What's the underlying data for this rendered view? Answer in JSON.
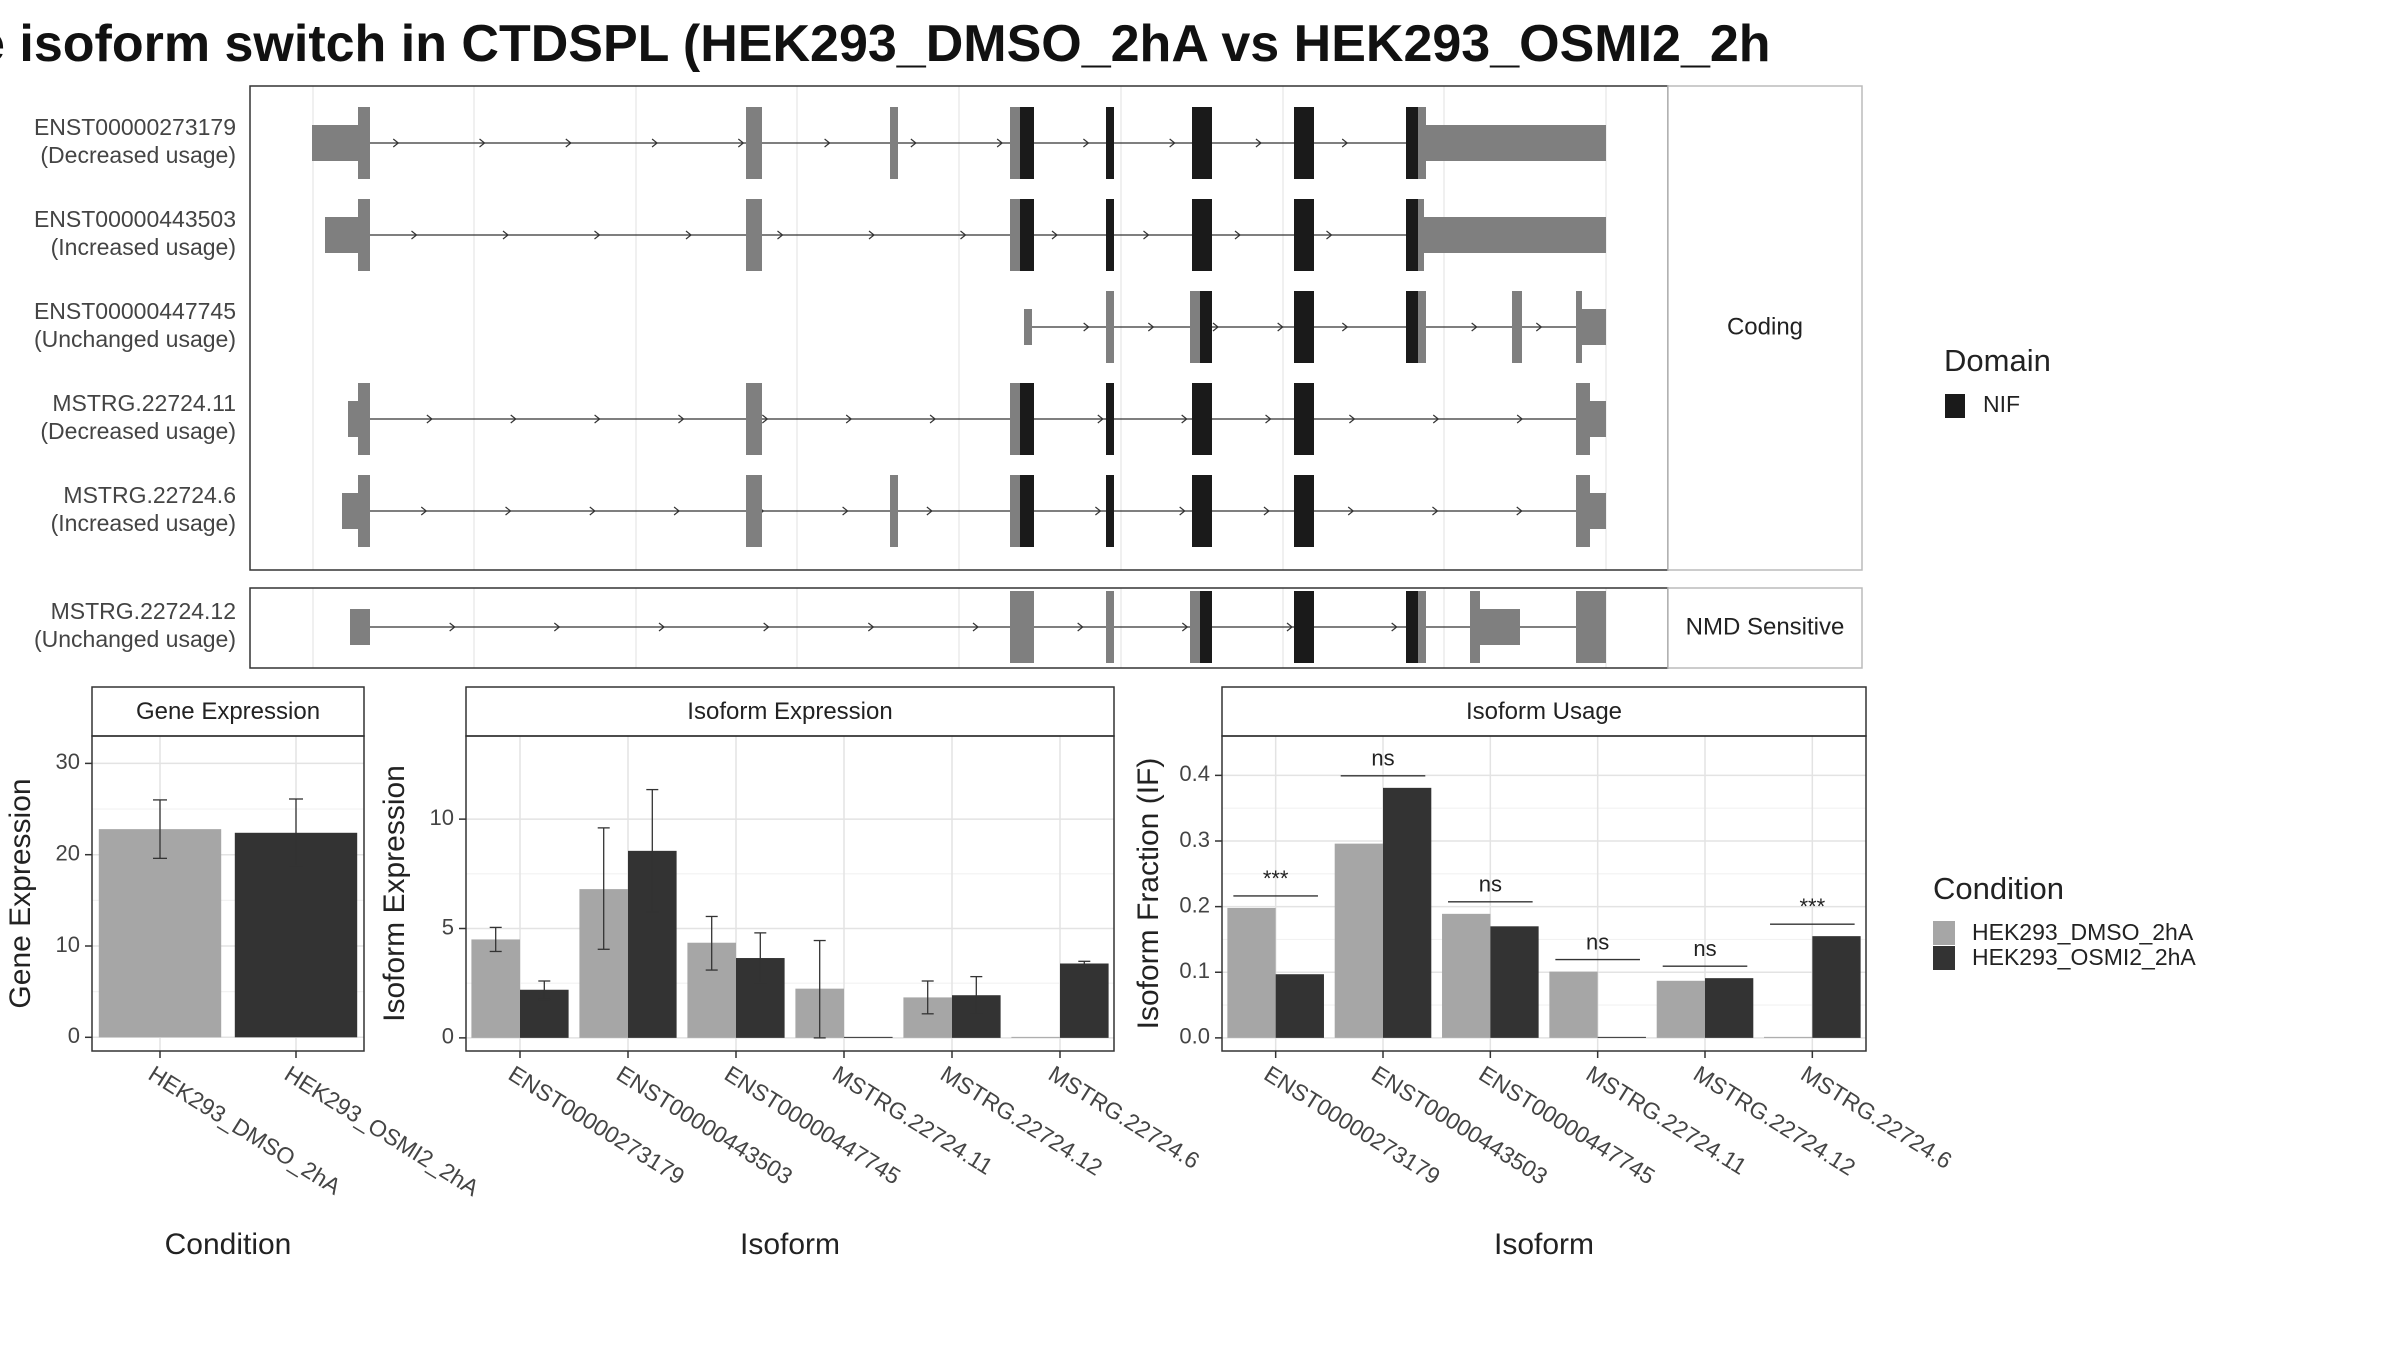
{
  "title": "e isoform switch in CTDSPL (HEK293_DMSO_2hA vs HEK293_OSMI2_2h",
  "colors": {
    "dmso": "#a6a6a6",
    "osmi2": "#333333",
    "exon": "#7f7f7f",
    "domain": "#1a1a1a",
    "strip": "#ffffff"
  },
  "transcripts": {
    "facets": [
      "Coding",
      "NMD Sensitive"
    ],
    "legend": {
      "title": "Domain",
      "items": [
        "NIF"
      ]
    },
    "rows": [
      {
        "facet": 0,
        "id": "ENST00000273179",
        "status": "(Decreased usage)"
      },
      {
        "facet": 0,
        "id": "ENST00000443503",
        "status": "(Increased usage)"
      },
      {
        "facet": 0,
        "id": "ENST00000447745",
        "status": "(Unchanged usage)"
      },
      {
        "facet": 0,
        "id": "MSTRG.22724.11",
        "status": "(Decreased usage)"
      },
      {
        "facet": 0,
        "id": "MSTRG.22724.6",
        "status": "(Increased usage)"
      },
      {
        "facet": 1,
        "id": "MSTRG.22724.12",
        "status": "(Unchanged usage)"
      }
    ]
  },
  "chart_data": [
    {
      "type": "bar",
      "title": "Gene Expression",
      "xlabel": "Condition",
      "ylabel": "Gene Expression",
      "categories": [
        "HEK293_DMSO_2hA",
        "HEK293_OSMI2_2hA"
      ],
      "values": [
        22.8,
        22.4
      ],
      "errors": [
        [
          19.6,
          26.0
        ],
        [
          18.8,
          26.1
        ]
      ],
      "ylim": [
        -1.5,
        33
      ],
      "yticks": [
        0,
        10,
        20,
        30
      ]
    },
    {
      "type": "bar",
      "title": "Isoform Expression",
      "xlabel": "Isoform",
      "ylabel": "Isoform Expression",
      "categories": [
        "ENST00000273179",
        "ENST00000443503",
        "ENST00000447745",
        "MSTRG.22724.11",
        "MSTRG.22724.12",
        "MSTRG.22724.6"
      ],
      "series": [
        {
          "name": "HEK293_DMSO_2hA",
          "values": [
            4.5,
            6.8,
            4.35,
            2.25,
            1.85,
            0.0
          ],
          "errors": [
            [
              3.95,
              5.05
            ],
            [
              4.05,
              9.6
            ],
            [
              3.1,
              5.55
            ],
            [
              0.0,
              4.45
            ],
            [
              1.1,
              2.6
            ],
            null
          ]
        },
        {
          "name": "HEK293_OSMI2_2hA",
          "values": [
            2.2,
            8.55,
            3.65,
            0.0,
            1.95,
            3.4
          ],
          "errors": [
            [
              1.75,
              2.6
            ],
            [
              5.75,
              11.35
            ],
            [
              2.5,
              4.8
            ],
            null,
            [
              1.1,
              2.8
            ],
            [
              3.3,
              3.5
            ]
          ]
        }
      ],
      "ylim": [
        -0.6,
        13.8
      ],
      "yticks": [
        0,
        5,
        10
      ]
    },
    {
      "type": "bar",
      "title": "Isoform Usage",
      "xlabel": "Isoform",
      "ylabel": "Isoform Fraction (IF)",
      "categories": [
        "ENST00000273179",
        "ENST00000443503",
        "ENST00000447745",
        "MSTRG.22724.11",
        "MSTRG.22724.12",
        "MSTRG.22724.6"
      ],
      "series": [
        {
          "name": "HEK293_DMSO_2hA",
          "values": [
            0.198,
            0.296,
            0.189,
            0.101,
            0.087,
            0.0
          ]
        },
        {
          "name": "HEK293_OSMI2_2hA",
          "values": [
            0.097,
            0.381,
            0.17,
            0.0,
            0.091,
            0.155
          ]
        }
      ],
      "significance": [
        "***",
        "ns",
        "ns",
        "ns",
        "ns",
        "***"
      ],
      "ylim": [
        -0.02,
        0.46
      ],
      "yticks": [
        0.0,
        0.1,
        0.2,
        0.3,
        0.4
      ],
      "ytick_labels": [
        "0.0",
        "0.1",
        "0.2",
        "0.3",
        "0.4"
      ]
    }
  ],
  "condition_legend": {
    "title": "Condition",
    "items": [
      "HEK293_DMSO_2hA",
      "HEK293_OSMI2_2hA"
    ]
  }
}
